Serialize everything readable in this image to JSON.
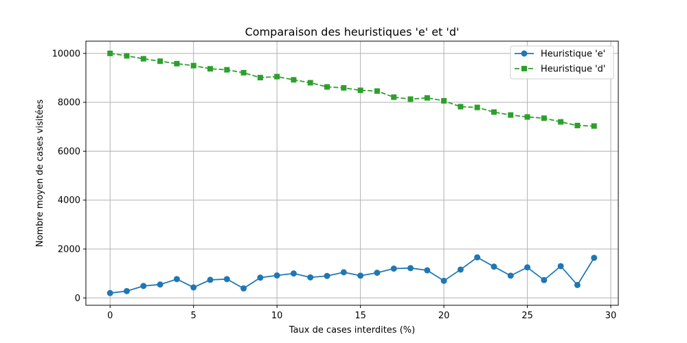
{
  "chart_data": {
    "type": "line",
    "title": "Comparaison des heuristiques 'e' et 'd'",
    "xlabel": "Taux de cases interdites (%)",
    "ylabel": "Nombre moyen de cases visitées",
    "xlim": [
      -1.45,
      30.45
    ],
    "ylim": [
      -300,
      10500
    ],
    "xticks": [
      0,
      5,
      10,
      15,
      20,
      25,
      30
    ],
    "yticks": [
      0,
      2000,
      4000,
      6000,
      8000,
      10000
    ],
    "grid": true,
    "legend_position": "top-right",
    "x": [
      0,
      1,
      2,
      3,
      4,
      5,
      6,
      7,
      8,
      9,
      10,
      11,
      12,
      13,
      14,
      15,
      16,
      17,
      18,
      19,
      20,
      21,
      22,
      23,
      24,
      25,
      26,
      27,
      28,
      29
    ],
    "series": [
      {
        "name": "Heuristique 'e'",
        "color": "#1f77b4",
        "marker": "circle",
        "linestyle": "solid",
        "values": [
          200,
          280,
          490,
          550,
          770,
          430,
          740,
          770,
          390,
          830,
          920,
          1000,
          840,
          900,
          1050,
          910,
          1030,
          1200,
          1220,
          1130,
          700,
          1160,
          1660,
          1280,
          910,
          1250,
          730,
          1300,
          530,
          1640
        ]
      },
      {
        "name": "Heuristique 'd'",
        "color": "#2ca02c",
        "marker": "square",
        "linestyle": "dashed",
        "values": [
          10000,
          9900,
          9780,
          9680,
          9580,
          9500,
          9370,
          9330,
          9210,
          9010,
          9050,
          8920,
          8800,
          8630,
          8590,
          8490,
          8460,
          8210,
          8130,
          8180,
          8060,
          7820,
          7790,
          7600,
          7480,
          7400,
          7350,
          7200,
          7050,
          7030
        ]
      }
    ]
  }
}
